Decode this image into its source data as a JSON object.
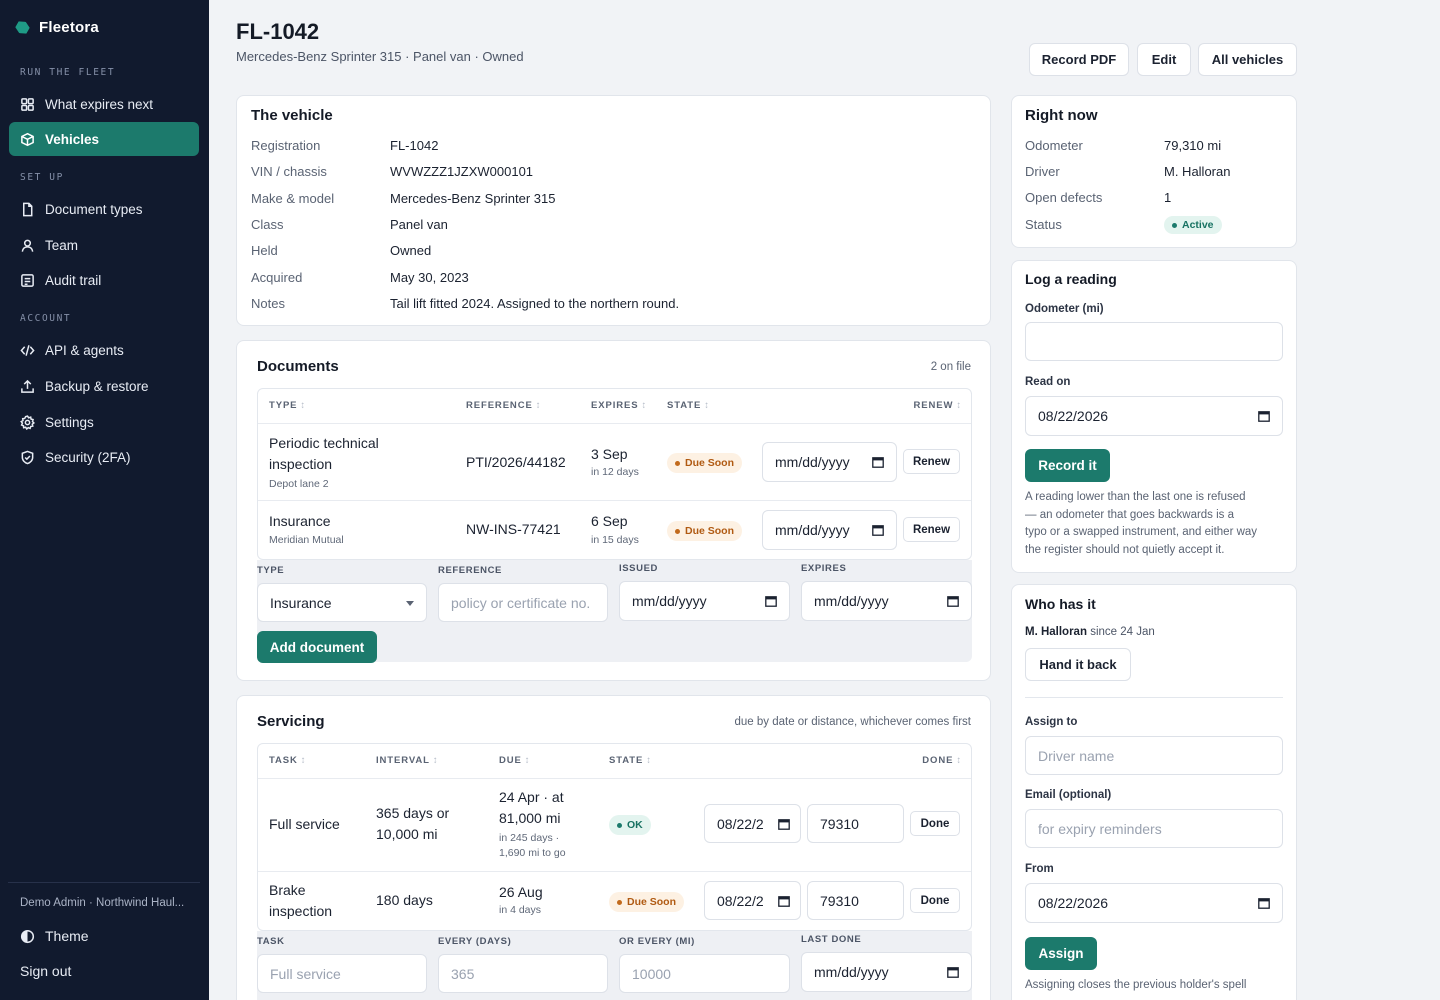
{
  "app": {
    "name": "Fleetora"
  },
  "sidebar": {
    "sections": [
      {
        "label": "RUN THE FLEET"
      },
      {
        "label": "SET UP"
      },
      {
        "label": "ACCOUNT"
      }
    ],
    "items": [
      {
        "label": "What expires next",
        "icon": "grid-icon"
      },
      {
        "label": "Vehicles",
        "icon": "cube-icon",
        "active": true
      },
      {
        "label": "Document types",
        "icon": "document-icon"
      },
      {
        "label": "Team",
        "icon": "person-icon"
      },
      {
        "label": "Audit trail",
        "icon": "list-icon"
      },
      {
        "label": "API & agents",
        "icon": "code-icon"
      },
      {
        "label": "Backup & restore",
        "icon": "upload-icon"
      },
      {
        "label": "Settings",
        "icon": "gear-icon"
      },
      {
        "label": "Security (2FA)",
        "icon": "shield-icon"
      }
    ],
    "account_line": "Demo Admin · Northwind Haul...",
    "theme_label": "Theme",
    "signout_label": "Sign out"
  },
  "header": {
    "title": "FL-1042",
    "subtitle": "Mercedes-Benz Sprinter 315 · Panel van · Owned",
    "buttons": {
      "record_pdf": "Record PDF",
      "edit": "Edit",
      "all_vehicles": "All vehicles"
    }
  },
  "vehicle": {
    "title": "The vehicle",
    "fields": [
      {
        "label": "Registration",
        "value": "FL-1042"
      },
      {
        "label": "VIN / chassis",
        "value": "WVWZZZ1JZXW000101"
      },
      {
        "label": "Make & model",
        "value": "Mercedes-Benz Sprinter 315"
      },
      {
        "label": "Class",
        "value": "Panel van"
      },
      {
        "label": "Held",
        "value": "Owned"
      },
      {
        "label": "Acquired",
        "value": "May 30, 2023"
      },
      {
        "label": "Notes",
        "value": "Tail lift fitted 2024. Assigned to the northern round."
      }
    ]
  },
  "documents": {
    "title": "Documents",
    "count": "2 on file",
    "headers": {
      "type": "TYPE",
      "reference": "REFERENCE",
      "expires": "EXPIRES",
      "state": "STATE",
      "renew": "RENEW"
    },
    "rows": [
      {
        "type_line1": "Periodic technical",
        "type_line2": "inspection",
        "sub": "Depot lane 2",
        "reference": "PTI/2026/44182",
        "expires": "3 Sep",
        "expires_sub": "in 12 days",
        "state": "Due Soon",
        "date_placeholder": "mm/dd/yyyy",
        "action": "Renew"
      },
      {
        "type_line1": "Insurance",
        "sub": "Meridian Mutual",
        "reference": "NW-INS-77421",
        "expires": "6 Sep",
        "expires_sub": "in 15 days",
        "state": "Due Soon",
        "date_placeholder": "mm/dd/yyyy",
        "action": "Renew"
      }
    ],
    "form": {
      "type_label": "TYPE",
      "type_value": "Insurance",
      "reference_label": "REFERENCE",
      "reference_placeholder": "policy or certificate no.",
      "issued_label": "ISSUED",
      "issued_placeholder": "mm/dd/yyyy",
      "expires_label": "EXPIRES",
      "expires_placeholder": "mm/dd/yyyy",
      "submit": "Add document"
    }
  },
  "servicing": {
    "title": "Servicing",
    "hint": "due by date or distance, whichever comes first",
    "headers": {
      "task": "TASK",
      "interval": "INTERVAL",
      "due": "DUE",
      "state": "STATE",
      "done": "DONE"
    },
    "rows": [
      {
        "task": "Full service",
        "interval_line1": "365 days or",
        "interval_line2": "10,000 mi",
        "due_line1": "24 Apr · at",
        "due_line2": "81,000 mi",
        "due_sub1": "in 245 days ·",
        "due_sub2": "1,690 mi to go",
        "state": "OK",
        "date": "08/22/2",
        "odo": "79310",
        "action": "Done"
      },
      {
        "task_line1": "Brake",
        "task_line2": "inspection",
        "interval_line1": "180 days",
        "due_line1": "26 Aug",
        "due_sub1": "in 4 days",
        "state": "Due Soon",
        "date": "08/22/2",
        "odo": "79310",
        "action": "Done"
      }
    ],
    "form": {
      "task_label": "TASK",
      "task_placeholder": "Full service",
      "every_days_label": "EVERY (DAYS)",
      "every_days_placeholder": "365",
      "every_mi_label": "OR EVERY (MI)",
      "every_mi_placeholder": "10000",
      "last_done_label": "LAST DONE",
      "last_done_placeholder": "mm/dd/yyyy"
    }
  },
  "right_now": {
    "title": "Right now",
    "fields": [
      {
        "label": "Odometer",
        "value": "79,310 mi"
      },
      {
        "label": "Driver",
        "value": "M. Halloran"
      },
      {
        "label": "Open defects",
        "value": "1"
      },
      {
        "label": "Status",
        "value": "Active"
      }
    ]
  },
  "log_reading": {
    "title": "Log a reading",
    "odometer_label": "Odometer (mi)",
    "read_on_label": "Read on",
    "read_on_value": "08/22/2026",
    "submit": "Record it",
    "note": [
      "A reading lower than the last one is refused",
      "— an odometer that goes backwards is a",
      "typo or a swapped instrument, and either way",
      "the register should not quietly accept it."
    ]
  },
  "who_has_it": {
    "title": "Who has it",
    "holder": "M. Halloran",
    "since": "since 24 Jan",
    "hand_back": "Hand it back",
    "assign_label": "Assign to",
    "assign_placeholder": "Driver name",
    "email_label": "Email (optional)",
    "email_placeholder": "for expiry reminders",
    "from_label": "From",
    "from_value": "08/22/2026",
    "submit": "Assign",
    "note": "Assigning closes the previous holder's spell"
  },
  "colors": {
    "sidebar": "#111a2e",
    "accent": "#1c7a6c",
    "due_soon": "#b05a12",
    "ok": "#177262"
  }
}
